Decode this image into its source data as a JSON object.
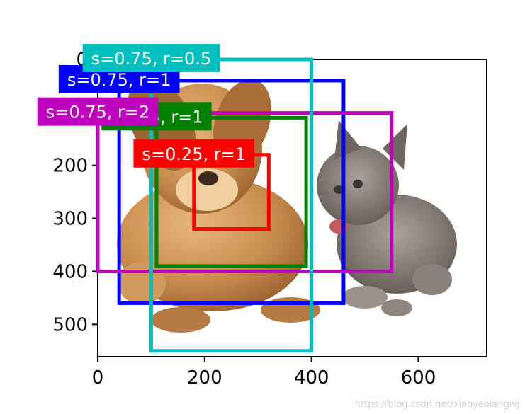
{
  "chart_data": {
    "type": "image-with-bounding-boxes",
    "xlim": [
      0,
      728
    ],
    "ylim": [
      561,
      0
    ],
    "x_ticks": [
      0,
      200,
      400,
      600
    ],
    "y_ticks": [
      0,
      100,
      200,
      300,
      400,
      500
    ],
    "y_tick_labels": [
      "0",
      "100",
      "200",
      "300",
      "400",
      "500"
    ],
    "grid": false,
    "image_content": [
      "dog",
      "cat"
    ],
    "boxes": [
      {
        "label": "s=0.75, r=1",
        "color": "#0000ff",
        "x0": 40,
        "y0": 40,
        "x1": 460,
        "y1": 460
      },
      {
        "label": "s=0.5, r=1",
        "color": "#008000",
        "x0": 110,
        "y0": 110,
        "x1": 390,
        "y1": 390
      },
      {
        "label": "s=0.25, r=1",
        "color": "#ff0000",
        "x0": 180,
        "y0": 180,
        "x1": 320,
        "y1": 320
      },
      {
        "label": "s=0.75, r=2",
        "color": "#bf00bf",
        "x0": 0,
        "y0": 101,
        "x1": 550,
        "y1": 400
      },
      {
        "label": "s=0.75, r=0.5",
        "color": "#00bfbf",
        "x0": 100,
        "y0": 0,
        "x1": 400,
        "y1": 550
      }
    ]
  },
  "watermark": "https://blog.csdn.net/xiaoyaolangwj"
}
